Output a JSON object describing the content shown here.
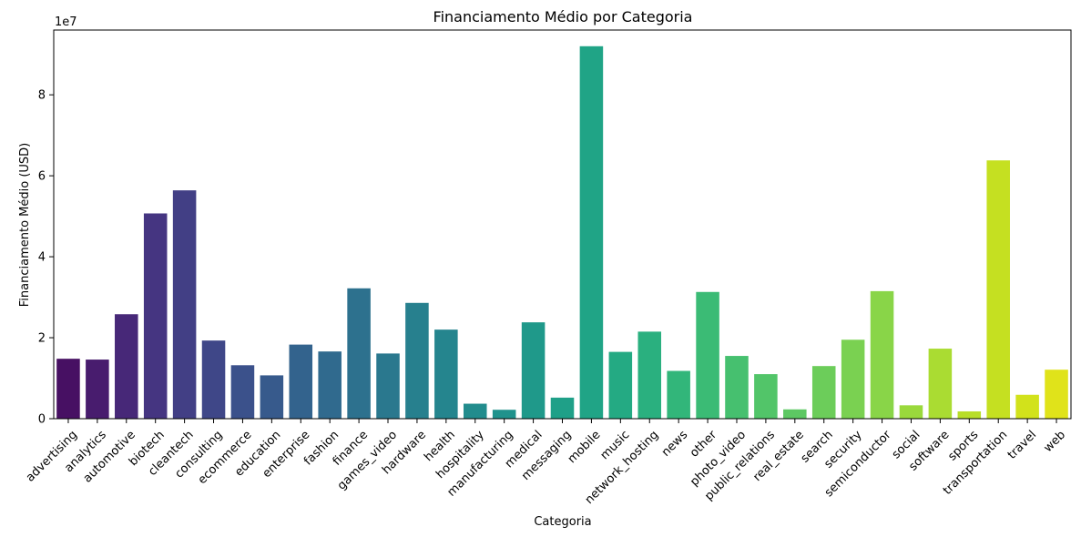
{
  "chart_data": {
    "type": "bar",
    "title": "Financiamento Médio por Categoria",
    "xlabel": "Categoria",
    "ylabel": "Financiamento Médio (USD)",
    "y_scale_label": "1e7",
    "y_tick_values": [
      0,
      2,
      4,
      6,
      8
    ],
    "y_tick_labels": [
      "0",
      "2",
      "4",
      "6",
      "8"
    ],
    "ylim": [
      0,
      9.6
    ],
    "grid": false,
    "categories": [
      "advertising",
      "analytics",
      "automotive",
      "biotech",
      "cleantech",
      "consulting",
      "ecommerce",
      "education",
      "enterprise",
      "fashion",
      "finance",
      "games_video",
      "hardware",
      "health",
      "hospitality",
      "manufacturing",
      "medical",
      "messaging",
      "mobile",
      "music",
      "network_hosting",
      "news",
      "other",
      "photo_video",
      "public_relations",
      "real_estate",
      "search",
      "security",
      "semiconductor",
      "social",
      "software",
      "sports",
      "transportation",
      "travel",
      "web"
    ],
    "values": [
      1.48,
      1.46,
      2.58,
      5.07,
      5.64,
      1.93,
      1.32,
      1.07,
      1.83,
      1.66,
      3.22,
      1.61,
      2.86,
      2.2,
      0.37,
      0.22,
      2.38,
      0.52,
      9.2,
      1.65,
      2.15,
      1.18,
      3.13,
      1.55,
      1.1,
      0.23,
      1.3,
      1.95,
      3.15,
      0.33,
      1.73,
      0.18,
      6.38,
      0.59,
      1.21
    ],
    "colors": [
      "#471063",
      "#481c6e",
      "#472878",
      "#453581",
      "#423f85",
      "#3f4788",
      "#3b518b",
      "#375a8c",
      "#33638d",
      "#306a8e",
      "#2d718e",
      "#2a788e",
      "#27808e",
      "#25858e",
      "#228c8d",
      "#20928c",
      "#1f998a",
      "#1fa088",
      "#20a486",
      "#24aa83",
      "#2ab07f",
      "#32b67a",
      "#3bbb75",
      "#46c06f",
      "#52c569",
      "#5dc863",
      "#6ccd5a",
      "#7ad151",
      "#89d548",
      "#9ad93c",
      "#aadc32",
      "#b8de29",
      "#c5e021",
      "#d2e21b",
      "#e0e31a"
    ]
  }
}
